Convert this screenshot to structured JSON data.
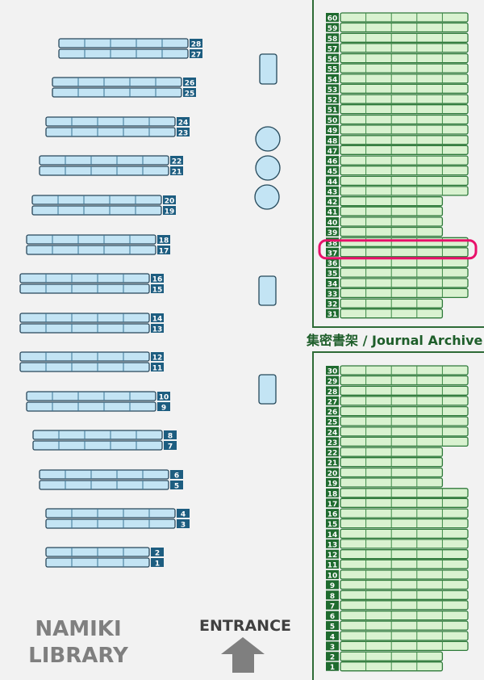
{
  "library_name": [
    "NAMIKI",
    "LIBRARY"
  ],
  "entrance_label": "ENTRANCE",
  "archive_label": "集密書架 / Journal Archive",
  "highlighted_shelf": 37,
  "colors": {
    "background": "#f2f2f2",
    "stack_fill": "#c3e4f4",
    "stack_label": "#1d5d80",
    "archive_fill": "#d9f2d0",
    "archive_label": "#1e6a2e",
    "highlight": "#e8106a"
  },
  "stacks": [
    {
      "num": 28,
      "sections": 5
    },
    {
      "num": 27,
      "sections": 5
    },
    {
      "num": 26,
      "sections": 5
    },
    {
      "num": 25,
      "sections": 5
    },
    {
      "num": 24,
      "sections": 5
    },
    {
      "num": 23,
      "sections": 5
    },
    {
      "num": 22,
      "sections": 5
    },
    {
      "num": 21,
      "sections": 5
    },
    {
      "num": 20,
      "sections": 5
    },
    {
      "num": 19,
      "sections": 5
    },
    {
      "num": 18,
      "sections": 5
    },
    {
      "num": 17,
      "sections": 5
    },
    {
      "num": 16,
      "sections": 5
    },
    {
      "num": 15,
      "sections": 5
    },
    {
      "num": 14,
      "sections": 5
    },
    {
      "num": 13,
      "sections": 5
    },
    {
      "num": 12,
      "sections": 5
    },
    {
      "num": 11,
      "sections": 5
    },
    {
      "num": 10,
      "sections": 5
    },
    {
      "num": 9,
      "sections": 5
    },
    {
      "num": 8,
      "sections": 5
    },
    {
      "num": 7,
      "sections": 5
    },
    {
      "num": 6,
      "sections": 5
    },
    {
      "num": 5,
      "sections": 5
    },
    {
      "num": 4,
      "sections": 5
    },
    {
      "num": 3,
      "sections": 5
    },
    {
      "num": 2,
      "sections": 4
    },
    {
      "num": 1,
      "sections": 4
    }
  ],
  "archive_upper": [
    {
      "num": 60,
      "sections": 5
    },
    {
      "num": 59,
      "sections": 5
    },
    {
      "num": 58,
      "sections": 5
    },
    {
      "num": 57,
      "sections": 5
    },
    {
      "num": 56,
      "sections": 5
    },
    {
      "num": 55,
      "sections": 5
    },
    {
      "num": 54,
      "sections": 5
    },
    {
      "num": 53,
      "sections": 5
    },
    {
      "num": 52,
      "sections": 5
    },
    {
      "num": 51,
      "sections": 5
    },
    {
      "num": 50,
      "sections": 5
    },
    {
      "num": 49,
      "sections": 5
    },
    {
      "num": 48,
      "sections": 5
    },
    {
      "num": 47,
      "sections": 5
    },
    {
      "num": 46,
      "sections": 5
    },
    {
      "num": 45,
      "sections": 5
    },
    {
      "num": 44,
      "sections": 5
    },
    {
      "num": 43,
      "sections": 5
    },
    {
      "num": 42,
      "sections": 4
    },
    {
      "num": 41,
      "sections": 4
    },
    {
      "num": 40,
      "sections": 4
    },
    {
      "num": 39,
      "sections": 4
    },
    {
      "num": 38,
      "sections": 5
    },
    {
      "num": 37,
      "sections": 5
    },
    {
      "num": 36,
      "sections": 5
    },
    {
      "num": 35,
      "sections": 5
    },
    {
      "num": 34,
      "sections": 5
    },
    {
      "num": 33,
      "sections": 5
    },
    {
      "num": 32,
      "sections": 4
    },
    {
      "num": 31,
      "sections": 4
    }
  ],
  "archive_lower": [
    {
      "num": 30,
      "sections": 5
    },
    {
      "num": 29,
      "sections": 5
    },
    {
      "num": 28,
      "sections": 5
    },
    {
      "num": 27,
      "sections": 5
    },
    {
      "num": 26,
      "sections": 5
    },
    {
      "num": 25,
      "sections": 5
    },
    {
      "num": 24,
      "sections": 5
    },
    {
      "num": 23,
      "sections": 5
    },
    {
      "num": 22,
      "sections": 4
    },
    {
      "num": 21,
      "sections": 4
    },
    {
      "num": 20,
      "sections": 4
    },
    {
      "num": 19,
      "sections": 4
    },
    {
      "num": 18,
      "sections": 5
    },
    {
      "num": 17,
      "sections": 5
    },
    {
      "num": 16,
      "sections": 5
    },
    {
      "num": 15,
      "sections": 5
    },
    {
      "num": 14,
      "sections": 5
    },
    {
      "num": 13,
      "sections": 5
    },
    {
      "num": 12,
      "sections": 5
    },
    {
      "num": 11,
      "sections": 5
    },
    {
      "num": 10,
      "sections": 5
    },
    {
      "num": 9,
      "sections": 5
    },
    {
      "num": 8,
      "sections": 5
    },
    {
      "num": 7,
      "sections": 5
    },
    {
      "num": 6,
      "sections": 5
    },
    {
      "num": 5,
      "sections": 5
    },
    {
      "num": 4,
      "sections": 5
    },
    {
      "num": 3,
      "sections": 5
    },
    {
      "num": 2,
      "sections": 4
    },
    {
      "num": 1,
      "sections": 4
    }
  ]
}
